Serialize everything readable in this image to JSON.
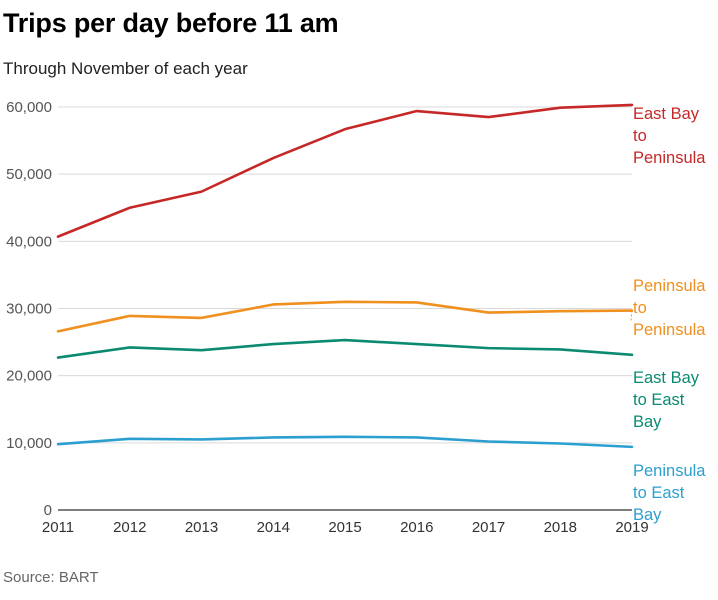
{
  "header": {
    "title": "Trips per day before 11 am",
    "subtitle": "Through November of each year"
  },
  "footer": {
    "source": "Source: BART"
  },
  "chart_data": {
    "type": "line",
    "x": [
      2011,
      2012,
      2013,
      2014,
      2015,
      2016,
      2017,
      2018,
      2019
    ],
    "ylim": [
      0,
      60000
    ],
    "yticks": [
      0,
      10000,
      20000,
      30000,
      40000,
      50000,
      60000
    ],
    "ytick_labels": [
      "0",
      "10,000",
      "20,000",
      "30,000",
      "40,000",
      "50,000",
      "60,000"
    ],
    "xtick_labels": [
      "2011",
      "2012",
      "2013",
      "2014",
      "2015",
      "2016",
      "2017",
      "2018",
      "2019"
    ],
    "grid": true,
    "legend": "direct labels at right",
    "series": [
      {
        "name": "East Bay to Peninsula",
        "label_lines": [
          "East Bay",
          "to",
          "Peninsula"
        ],
        "color": "#c62828",
        "values": [
          40700,
          45000,
          47400,
          52400,
          56700,
          59400,
          58500,
          59900,
          60300
        ]
      },
      {
        "name": "Peninsula to Peninsula",
        "label_lines": [
          "Peninsula",
          "to",
          "Peninsula"
        ],
        "color": "#f0901e",
        "values": [
          26600,
          28900,
          28600,
          30600,
          31000,
          30900,
          29400,
          29600,
          29700
        ]
      },
      {
        "name": "East Bay to East Bay",
        "label_lines": [
          "East Bay",
          "to East",
          "Bay"
        ],
        "color": "#0b8a72",
        "values": [
          22700,
          24200,
          23800,
          24700,
          25300,
          24700,
          24100,
          23900,
          23100
        ]
      },
      {
        "name": "Peninsula to East Bay",
        "label_lines": [
          "Peninsula",
          "to East",
          "Bay"
        ],
        "color": "#2b9fcf",
        "values": [
          9800,
          10600,
          10500,
          10800,
          10900,
          10800,
          10200,
          9900,
          9400
        ]
      }
    ]
  }
}
